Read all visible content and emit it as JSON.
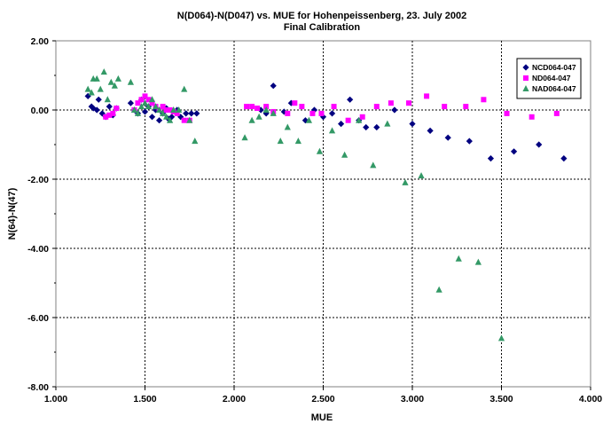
{
  "chart_data": {
    "type": "scatter",
    "title": "N(D064)-N(D047) vs. MUE for Hohenpeissenberg, 23. July 2002",
    "subtitle": "Final Calibration",
    "xlabel": "MUE",
    "ylabel": "N(64)-N(47)",
    "xlim": [
      1.0,
      4.0
    ],
    "ylim": [
      -8.0,
      2.0
    ],
    "x_ticks": [
      "1.000",
      "1.500",
      "2.000",
      "2.500",
      "3.000",
      "3.500",
      "4.000"
    ],
    "y_ticks": [
      "2.00",
      "0.00",
      "-2.00",
      "-4.00",
      "-6.00",
      "-8.00"
    ],
    "grid": "dashed",
    "legend_position": "top-right",
    "series": [
      {
        "name": "NCD064-047",
        "color": "#000080",
        "marker": "diamond",
        "points": [
          [
            1.18,
            0.4
          ],
          [
            1.2,
            0.1
          ],
          [
            1.21,
            0.05
          ],
          [
            1.23,
            0.0
          ],
          [
            1.24,
            0.3
          ],
          [
            1.26,
            -0.1
          ],
          [
            1.28,
            -0.2
          ],
          [
            1.3,
            0.1
          ],
          [
            1.32,
            -0.15
          ],
          [
            1.34,
            0.05
          ],
          [
            1.42,
            0.2
          ],
          [
            1.44,
            0.0
          ],
          [
            1.46,
            -0.1
          ],
          [
            1.48,
            0.3
          ],
          [
            1.5,
            -0.05
          ],
          [
            1.52,
            0.1
          ],
          [
            1.54,
            -0.2
          ],
          [
            1.56,
            0.0
          ],
          [
            1.58,
            -0.3
          ],
          [
            1.6,
            -0.1
          ],
          [
            1.62,
            0.05
          ],
          [
            1.63,
            -0.25
          ],
          [
            1.65,
            -0.2
          ],
          [
            1.68,
            0.0
          ],
          [
            1.7,
            -0.2
          ],
          [
            1.73,
            -0.1
          ],
          [
            1.76,
            -0.1
          ],
          [
            1.79,
            -0.1
          ],
          [
            2.15,
            0.0
          ],
          [
            2.18,
            -0.1
          ],
          [
            2.22,
            0.7
          ],
          [
            2.28,
            -0.05
          ],
          [
            2.32,
            0.2
          ],
          [
            2.4,
            -0.3
          ],
          [
            2.45,
            0.0
          ],
          [
            2.5,
            -0.2
          ],
          [
            2.55,
            -0.1
          ],
          [
            2.6,
            -0.4
          ],
          [
            2.65,
            0.3
          ],
          [
            2.7,
            -0.3
          ],
          [
            2.74,
            -0.5
          ],
          [
            2.8,
            -0.5
          ],
          [
            2.9,
            0.0
          ],
          [
            3.0,
            -0.4
          ],
          [
            3.1,
            -0.6
          ],
          [
            3.2,
            -0.8
          ],
          [
            3.32,
            -0.9
          ],
          [
            3.44,
            -1.4
          ],
          [
            3.57,
            -1.2
          ],
          [
            3.71,
            -1.0
          ],
          [
            3.85,
            -1.4
          ]
        ]
      },
      {
        "name": "ND064-047",
        "color": "#ff00ff",
        "marker": "square",
        "points": [
          [
            1.28,
            -0.2
          ],
          [
            1.3,
            -0.15
          ],
          [
            1.32,
            -0.1
          ],
          [
            1.34,
            0.05
          ],
          [
            1.44,
            0.0
          ],
          [
            1.46,
            0.2
          ],
          [
            1.48,
            0.3
          ],
          [
            1.5,
            0.4
          ],
          [
            1.52,
            0.3
          ],
          [
            1.54,
            0.2
          ],
          [
            1.56,
            0.1
          ],
          [
            1.58,
            0.0
          ],
          [
            1.6,
            0.1
          ],
          [
            1.62,
            0.0
          ],
          [
            1.64,
            0.0
          ],
          [
            1.66,
            -0.05
          ],
          [
            1.68,
            -0.1
          ],
          [
            1.72,
            -0.3
          ],
          [
            1.75,
            -0.3
          ],
          [
            2.07,
            0.1
          ],
          [
            2.1,
            0.1
          ],
          [
            2.13,
            0.05
          ],
          [
            2.18,
            0.1
          ],
          [
            2.22,
            -0.05
          ],
          [
            2.3,
            -0.1
          ],
          [
            2.34,
            0.2
          ],
          [
            2.38,
            0.1
          ],
          [
            2.44,
            -0.1
          ],
          [
            2.49,
            -0.1
          ],
          [
            2.56,
            0.1
          ],
          [
            2.64,
            -0.3
          ],
          [
            2.72,
            -0.2
          ],
          [
            2.8,
            0.1
          ],
          [
            2.88,
            0.2
          ],
          [
            2.98,
            0.2
          ],
          [
            3.08,
            0.4
          ],
          [
            3.18,
            0.1
          ],
          [
            3.3,
            0.1
          ],
          [
            3.4,
            0.3
          ],
          [
            3.53,
            -0.1
          ],
          [
            3.67,
            -0.2
          ],
          [
            3.81,
            -0.1
          ]
        ]
      },
      {
        "name": "NAD064-047",
        "color": "#339966",
        "marker": "triangle",
        "points": [
          [
            1.18,
            0.6
          ],
          [
            1.2,
            0.5
          ],
          [
            1.21,
            0.9
          ],
          [
            1.23,
            0.9
          ],
          [
            1.25,
            0.6
          ],
          [
            1.27,
            1.1
          ],
          [
            1.29,
            0.3
          ],
          [
            1.31,
            0.8
          ],
          [
            1.33,
            0.7
          ],
          [
            1.35,
            0.9
          ],
          [
            1.42,
            0.8
          ],
          [
            1.44,
            0.0
          ],
          [
            1.46,
            -0.1
          ],
          [
            1.48,
            0.1
          ],
          [
            1.5,
            0.2
          ],
          [
            1.52,
            0.1
          ],
          [
            1.54,
            0.3
          ],
          [
            1.56,
            0.1
          ],
          [
            1.58,
            0.0
          ],
          [
            1.6,
            -0.1
          ],
          [
            1.62,
            -0.2
          ],
          [
            1.64,
            -0.3
          ],
          [
            1.66,
            0.0
          ],
          [
            1.69,
            0.0
          ],
          [
            1.72,
            0.6
          ],
          [
            1.75,
            -0.3
          ],
          [
            1.78,
            -0.9
          ],
          [
            2.06,
            -0.8
          ],
          [
            2.1,
            -0.3
          ],
          [
            2.14,
            -0.2
          ],
          [
            2.18,
            0.0
          ],
          [
            2.22,
            -0.1
          ],
          [
            2.26,
            -0.9
          ],
          [
            2.3,
            -0.5
          ],
          [
            2.36,
            -0.9
          ],
          [
            2.42,
            -0.3
          ],
          [
            2.48,
            -1.2
          ],
          [
            2.55,
            -0.6
          ],
          [
            2.62,
            -1.3
          ],
          [
            2.7,
            -0.3
          ],
          [
            2.78,
            -1.6
          ],
          [
            2.86,
            -0.4
          ],
          [
            2.96,
            -2.1
          ],
          [
            3.05,
            -1.9
          ],
          [
            3.15,
            -5.2
          ],
          [
            3.26,
            -4.3
          ],
          [
            3.37,
            -4.4
          ],
          [
            3.5,
            -6.6
          ]
        ]
      }
    ]
  }
}
